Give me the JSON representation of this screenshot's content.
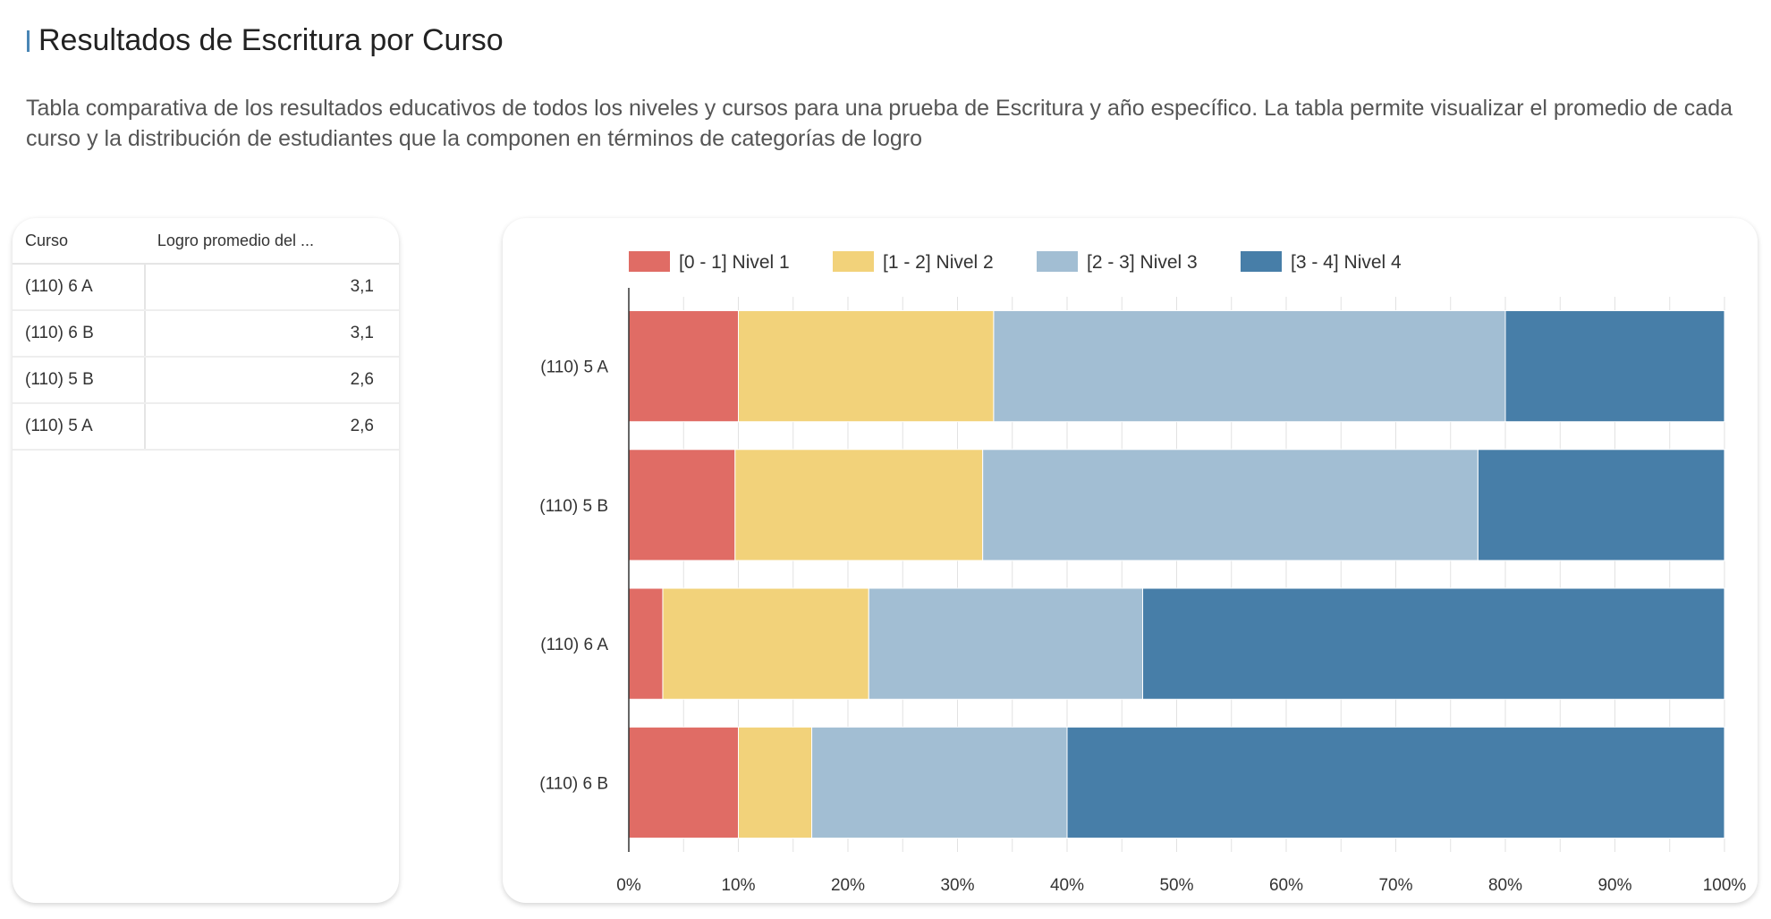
{
  "header": {
    "title": "Resultados de Escritura por Curso",
    "description": "Tabla comparativa de los resultados educativos de todos los niveles y cursos para una prueba de Escritura y año específico. La tabla permite visualizar el promedio de cada curso y la distribución de estudiantes que la componen en términos de categorías de logro"
  },
  "table": {
    "columns": [
      "Curso",
      "Logro promedio del ..."
    ],
    "rows": [
      [
        "(110) 6 A",
        "3,1"
      ],
      [
        "(110) 6 B",
        "3,1"
      ],
      [
        "(110) 5 B",
        "2,6"
      ],
      [
        "(110) 5 A",
        "2,6"
      ]
    ]
  },
  "chart_data": {
    "type": "bar",
    "orientation": "horizontal",
    "stacked": "percent",
    "categories": [
      "(110) 5 A",
      "(110) 5 B",
      "(110) 6 A",
      "(110) 6 B"
    ],
    "series": [
      {
        "name": "[0 - 1] Nivel 1",
        "color": "#e06c65",
        "values": [
          10.0,
          9.7,
          3.1,
          10.0
        ]
      },
      {
        "name": "[1 - 2] Nivel 2",
        "color": "#f2d27a",
        "values": [
          23.3,
          22.6,
          18.8,
          6.7
        ]
      },
      {
        "name": "[2 - 3] Nivel 3",
        "color": "#a2bed3",
        "values": [
          46.7,
          45.2,
          25.0,
          23.3
        ]
      },
      {
        "name": "[3 - 4] Nivel 4",
        "color": "#477ea8",
        "values": [
          20.0,
          22.5,
          53.1,
          60.0
        ]
      }
    ],
    "xlim": [
      0,
      100
    ],
    "xticks": [
      "0%",
      "10%",
      "20%",
      "30%",
      "40%",
      "50%",
      "60%",
      "70%",
      "80%",
      "90%",
      "100%"
    ],
    "legend": "top",
    "grid": true
  }
}
